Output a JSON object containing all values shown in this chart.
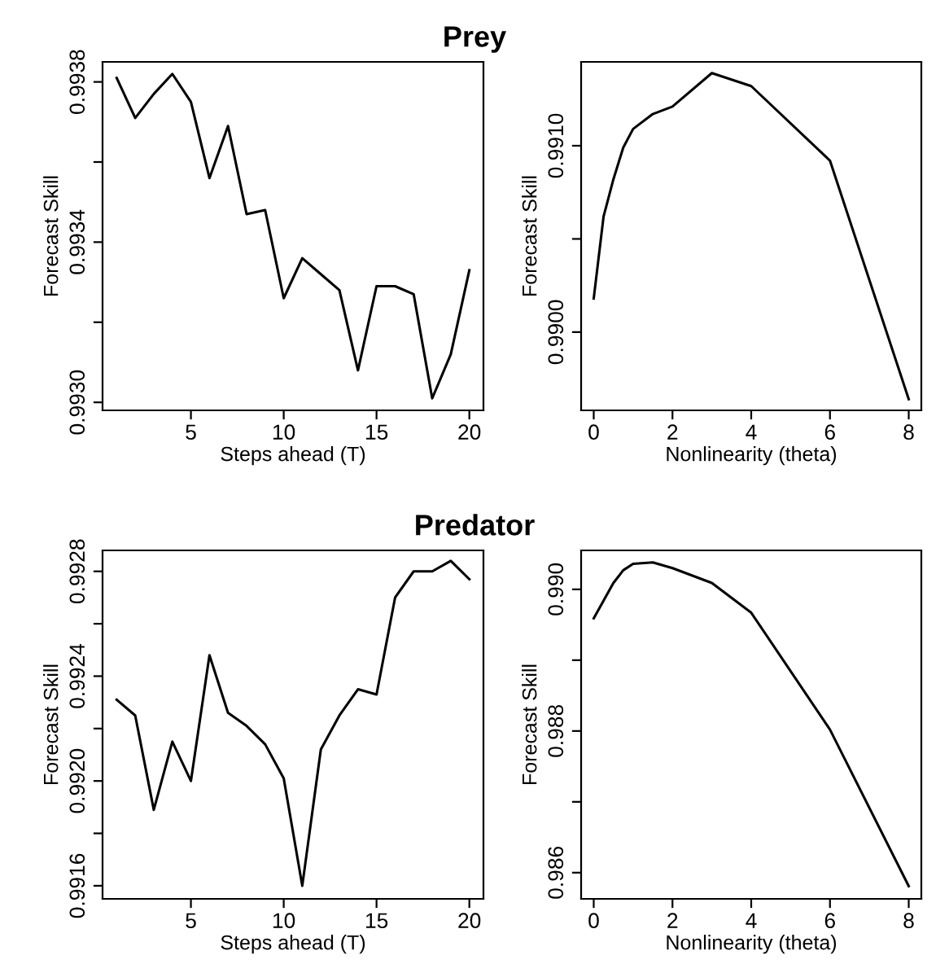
{
  "chart_data": [
    {
      "type": "line",
      "title": "Prey",
      "xlabel": "Steps ahead (T)",
      "ylabel": "Forecast Skill",
      "xlim": [
        0.24,
        20.76
      ],
      "xticks": [
        5,
        10,
        15,
        20
      ],
      "ylim": [
        0.99298,
        0.99385
      ],
      "yticks": [
        {
          "value": 0.993,
          "label": "0.9930"
        },
        {
          "value": 0.9932,
          "label": null
        },
        {
          "value": 0.9934,
          "label": "0.9934"
        },
        {
          "value": 0.9936,
          "label": null
        },
        {
          "value": 0.9938,
          "label": "0.9938"
        }
      ],
      "grid": false,
      "series": [
        {
          "color": "#000000",
          "x": [
            1,
            2,
            3,
            4,
            5,
            6,
            7,
            8,
            9,
            10,
            11,
            12,
            13,
            14,
            15,
            16,
            17,
            18,
            19,
            20
          ],
          "values": [
            0.99381,
            0.99371,
            0.99377,
            0.99382,
            0.99375,
            0.99356,
            0.99369,
            0.99347,
            0.99348,
            0.99326,
            0.99336,
            0.99332,
            0.99328,
            0.99308,
            0.99329,
            0.99329,
            0.99327,
            0.99301,
            0.99312,
            0.99333
          ]
        }
      ]
    },
    {
      "type": "line",
      "xlabel": "Nonlinearity (theta)",
      "ylabel": "Forecast Skill",
      "xlim": [
        -0.32,
        8.32
      ],
      "xticks": [
        0,
        2,
        4,
        6,
        8
      ],
      "ylim": [
        0.98958,
        0.99145
      ],
      "yticks": [
        {
          "value": 0.99,
          "label": "0.9900"
        },
        {
          "value": 0.9905,
          "label": null
        },
        {
          "value": 0.991,
          "label": "0.9910"
        }
      ],
      "grid": false,
      "series": [
        {
          "color": "#000000",
          "x": [
            0,
            0.25,
            0.5,
            0.75,
            1,
            1.5,
            2,
            3,
            4,
            6,
            8
          ],
          "values": [
            0.99018,
            0.99062,
            0.99082,
            0.99099,
            0.99109,
            0.99117,
            0.99121,
            0.99139,
            0.99132,
            0.99092,
            0.98964
          ]
        }
      ]
    },
    {
      "type": "line",
      "title": "Predator",
      "xlabel": "Steps ahead (T)",
      "ylabel": "Forecast Skill",
      "xlim": [
        0.24,
        20.76
      ],
      "xticks": [
        5,
        10,
        15,
        20
      ],
      "ylim": [
        0.99155,
        0.99288
      ],
      "yticks": [
        {
          "value": 0.9916,
          "label": "0.9916"
        },
        {
          "value": 0.9918,
          "label": null
        },
        {
          "value": 0.992,
          "label": "0.9920"
        },
        {
          "value": 0.9922,
          "label": null
        },
        {
          "value": 0.9924,
          "label": "0.9924"
        },
        {
          "value": 0.9926,
          "label": null
        },
        {
          "value": 0.9928,
          "label": "0.9928"
        }
      ],
      "grid": false,
      "series": [
        {
          "color": "#000000",
          "x": [
            1,
            2,
            3,
            4,
            5,
            6,
            7,
            8,
            9,
            10,
            11,
            12,
            13,
            14,
            15,
            16,
            17,
            18,
            19,
            20
          ],
          "values": [
            0.99231,
            0.99225,
            0.99189,
            0.99215,
            0.992,
            0.99248,
            0.99226,
            0.99221,
            0.99214,
            0.99201,
            0.9916,
            0.99212,
            0.99225,
            0.99235,
            0.99233,
            0.9927,
            0.9928,
            0.9928,
            0.99284,
            0.99277
          ]
        }
      ]
    },
    {
      "type": "line",
      "xlabel": "Nonlinearity (theta)",
      "ylabel": "Forecast Skill",
      "xlim": [
        -0.32,
        8.32
      ],
      "xticks": [
        0,
        2,
        4,
        6,
        8
      ],
      "ylim": [
        0.98563,
        0.99055
      ],
      "yticks": [
        {
          "value": 0.986,
          "label": "0.986"
        },
        {
          "value": 0.987,
          "label": null
        },
        {
          "value": 0.988,
          "label": "0.988"
        },
        {
          "value": 0.989,
          "label": null
        },
        {
          "value": 0.99,
          "label": "0.990"
        }
      ],
      "grid": false,
      "series": [
        {
          "color": "#000000",
          "x": [
            0,
            0.25,
            0.5,
            0.75,
            1,
            1.5,
            2,
            3,
            4,
            6,
            8
          ],
          "values": [
            0.98959,
            0.98984,
            0.99009,
            0.99027,
            0.99036,
            0.99038,
            0.9903,
            0.99009,
            0.98967,
            0.98802,
            0.98581
          ]
        }
      ]
    }
  ]
}
